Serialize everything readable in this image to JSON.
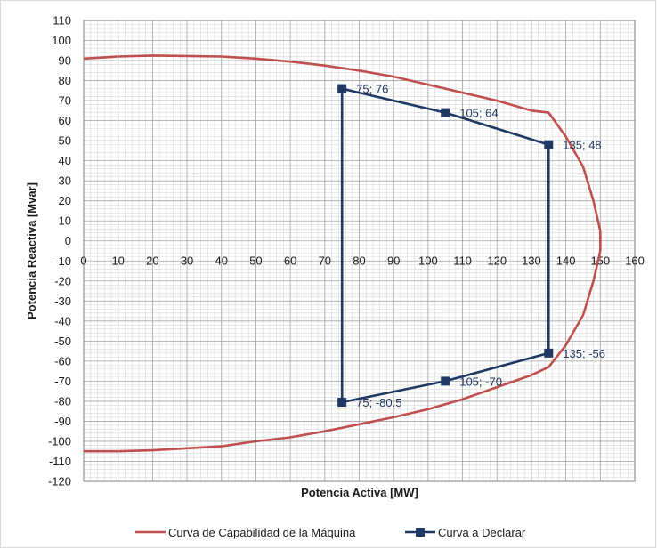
{
  "chart_data": {
    "type": "line",
    "title": "",
    "xlabel": "Potencia Activa [MW]",
    "ylabel": "Potencia Reactiva [Mvar]",
    "xlim": [
      0,
      160
    ],
    "ylim": [
      -120,
      110
    ],
    "x_ticks": [
      0,
      10,
      20,
      30,
      40,
      50,
      60,
      70,
      80,
      90,
      100,
      110,
      120,
      130,
      140,
      150,
      160
    ],
    "y_ticks": [
      110,
      100,
      90,
      80,
      70,
      60,
      50,
      40,
      30,
      20,
      10,
      0,
      -10,
      -20,
      -30,
      -40,
      -50,
      -60,
      -70,
      -80,
      -90,
      -100,
      -110,
      -120
    ],
    "grid": true,
    "legend_position": "bottom",
    "series": [
      {
        "name": "Curva de Capabilidad de la Máquina",
        "color": "#c0504d",
        "markers": false,
        "points": [
          [
            0,
            91
          ],
          [
            10,
            92
          ],
          [
            20,
            92.5
          ],
          [
            30,
            92.3
          ],
          [
            40,
            92
          ],
          [
            50,
            91
          ],
          [
            60,
            89.5
          ],
          [
            70,
            87.5
          ],
          [
            80,
            85
          ],
          [
            90,
            82
          ],
          [
            100,
            78
          ],
          [
            110,
            74
          ],
          [
            120,
            70
          ],
          [
            130,
            65
          ],
          [
            135,
            64
          ],
          [
            140,
            52
          ],
          [
            145,
            37
          ],
          [
            148,
            20
          ],
          [
            150,
            5
          ],
          [
            150,
            -5
          ],
          [
            148,
            -20
          ],
          [
            145,
            -37
          ],
          [
            140,
            -52
          ],
          [
            135,
            -63
          ],
          [
            130,
            -67
          ],
          [
            120,
            -73
          ],
          [
            110,
            -79
          ],
          [
            100,
            -84
          ],
          [
            90,
            -88
          ],
          [
            80,
            -91.5
          ],
          [
            70,
            -95
          ],
          [
            60,
            -98
          ],
          [
            50,
            -100
          ],
          [
            40,
            -102.5
          ],
          [
            30,
            -103.5
          ],
          [
            20,
            -104.5
          ],
          [
            10,
            -105
          ],
          [
            0,
            -105
          ]
        ]
      },
      {
        "name": "Curva a Declarar",
        "color": "#1f3864",
        "markers": true,
        "points": [
          [
            75,
            76
          ],
          [
            105,
            64
          ],
          [
            135,
            48
          ],
          [
            135,
            -56
          ],
          [
            105,
            -70
          ],
          [
            75,
            -80.5
          ],
          [
            75,
            76
          ]
        ]
      }
    ],
    "annotations": [
      {
        "x": 75,
        "y": 76,
        "text": "75; 76"
      },
      {
        "x": 105,
        "y": 64,
        "text": "105; 64"
      },
      {
        "x": 135,
        "y": 48,
        "text": "135; 48"
      },
      {
        "x": 135,
        "y": -56,
        "text": "135; -56"
      },
      {
        "x": 105,
        "y": -70,
        "text": "105; -70"
      },
      {
        "x": 75,
        "y": -80.5,
        "text": "75; -80.5"
      }
    ]
  }
}
